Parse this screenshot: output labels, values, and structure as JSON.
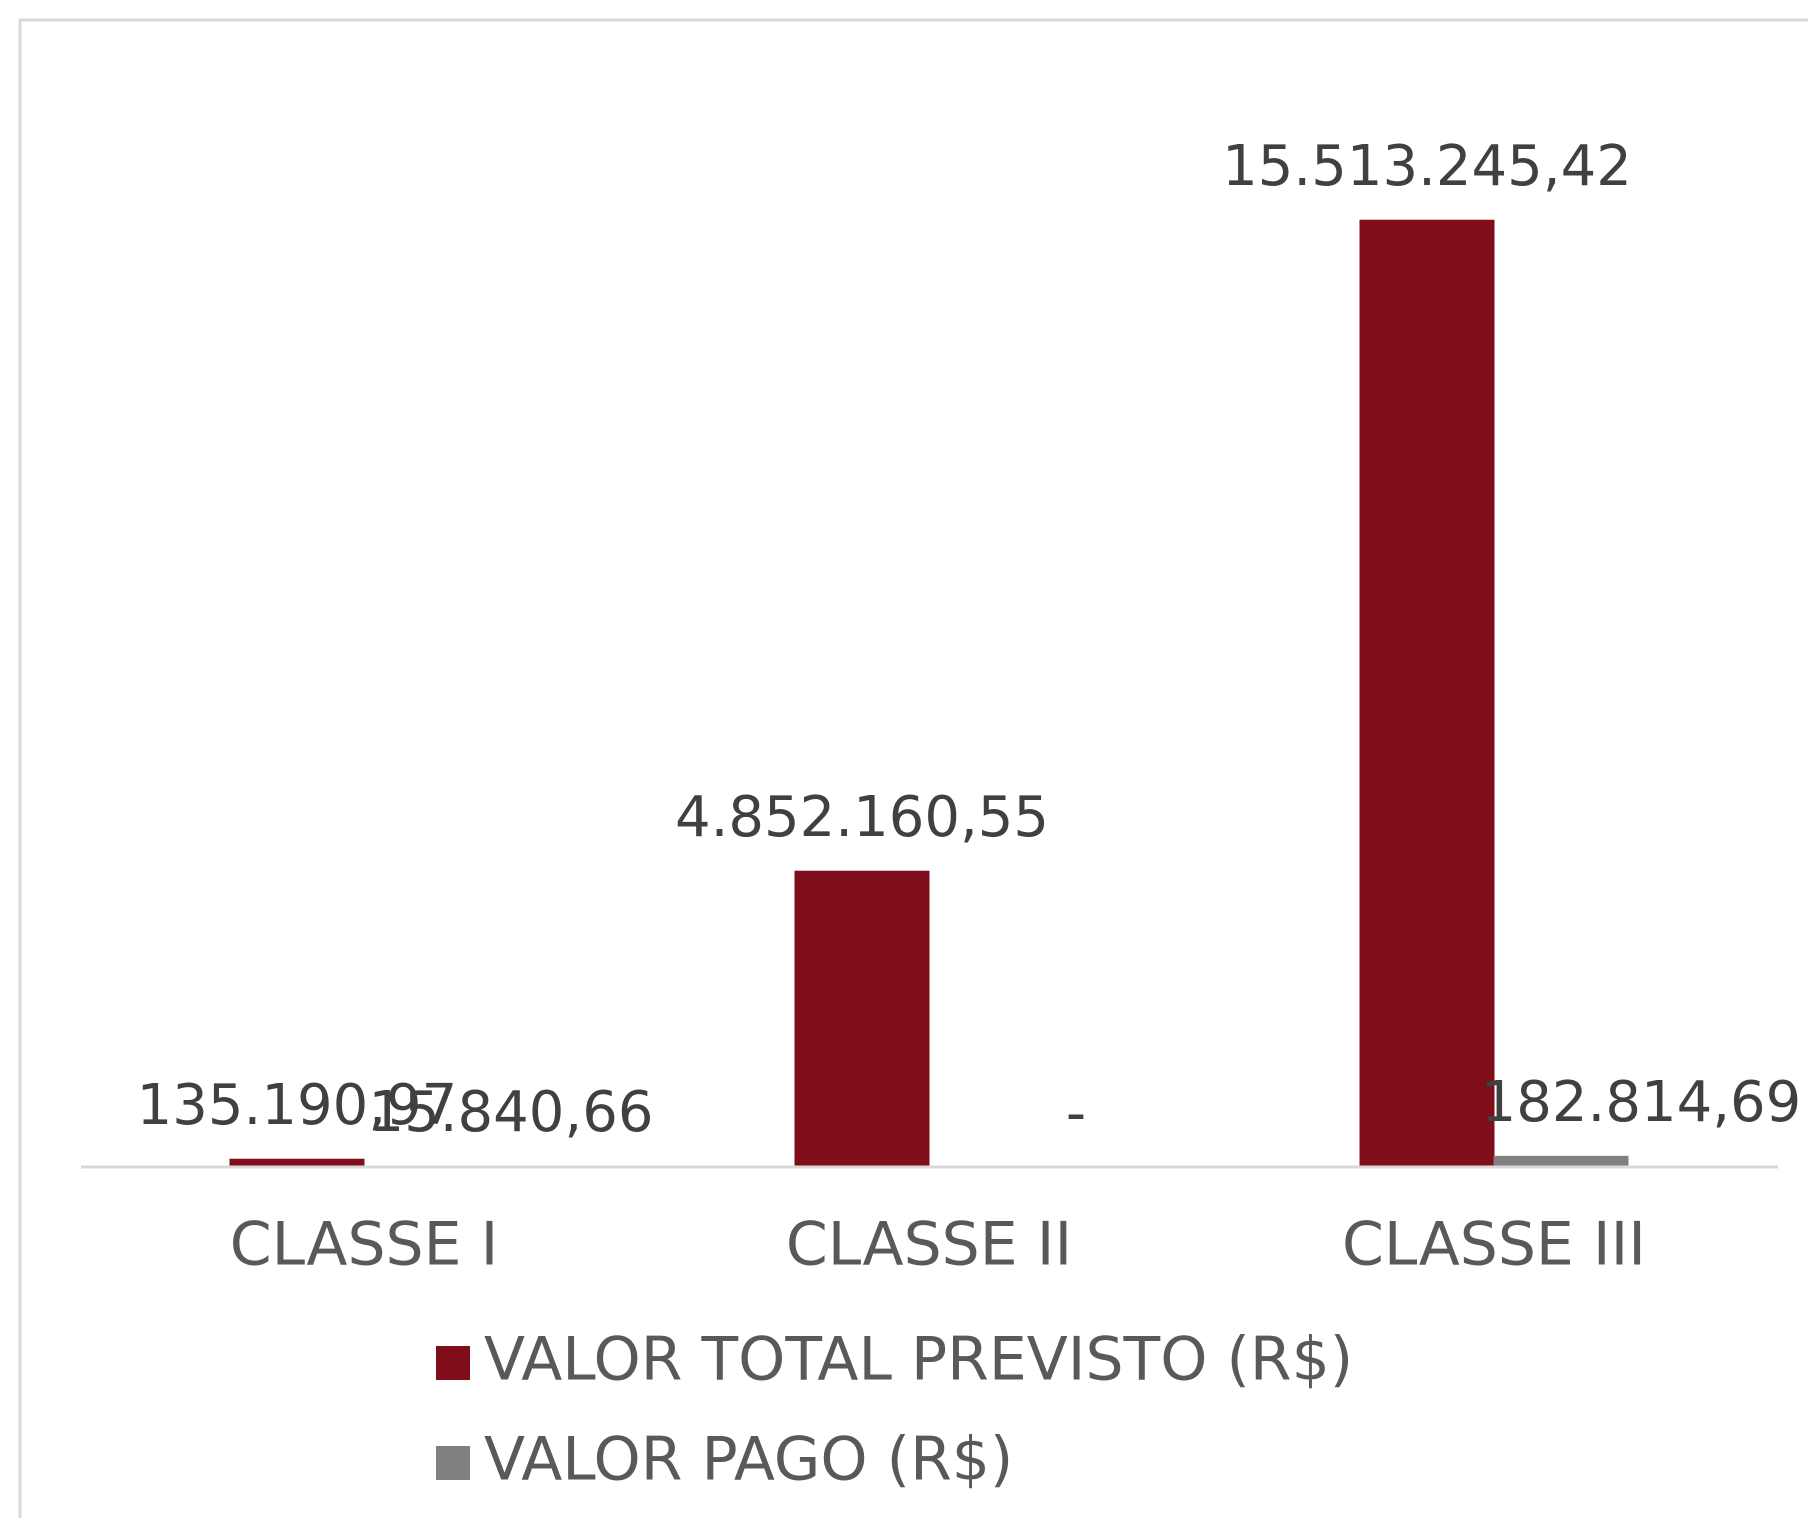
{
  "chart_data": {
    "type": "bar",
    "categories": [
      "CLASSE I",
      "CLASSE II",
      "CLASSE III"
    ],
    "series": [
      {
        "name": "VALOR TOTAL PREVISTO (R$)",
        "color": "#7f0e1a",
        "values": [
          135190.97,
          4852160.55,
          15513245.42
        ],
        "value_labels": [
          "135.190,97",
          "4.852.160,55",
          "15.513.245,42"
        ]
      },
      {
        "name": "VALOR PAGO (R$)",
        "color": "#808080",
        "values": [
          15840.66,
          0,
          182814.69
        ],
        "value_labels": [
          "15.840,66",
          "-",
          "182.814,69"
        ]
      }
    ],
    "ylim": [
      0,
      16000000
    ]
  }
}
